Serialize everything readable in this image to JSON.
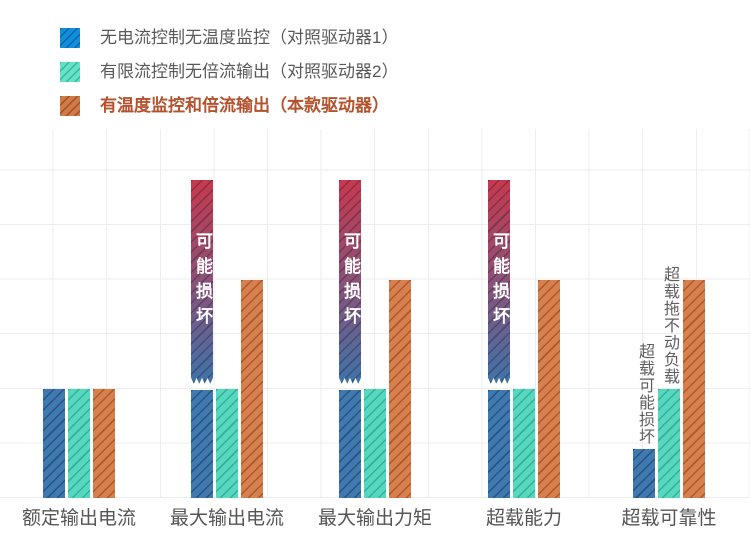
{
  "legend": {
    "items": [
      {
        "label": "无电流控制无温度监控（对照驱动器1）",
        "swatch_color": "#0f8ed9",
        "hatch_color": "rgba(10,60,140,0.55)",
        "text_color": "#595959",
        "bold": false
      },
      {
        "label": "有限流控制无倍流输出（对照驱动器2）",
        "swatch_color": "#63e2c7",
        "hatch_color": "rgba(20,120,100,0.45)",
        "text_color": "#595959",
        "bold": false
      },
      {
        "label": "有温度监控和倍流输出（本款驱动器）",
        "swatch_color": "#cf7a47",
        "hatch_color": "rgba(110,40,15,0.5)",
        "text_color": "#b4522d",
        "bold": true
      }
    ]
  },
  "chart_data": {
    "type": "bar",
    "categories": [
      "额定输出电流",
      "最大输出电流",
      "最大输出力矩",
      "超载能力",
      "超载可靠性"
    ],
    "series": [
      {
        "name": "无电流控制无温度监控（对照驱动器1）",
        "color": "#3e7aaf",
        "hatch_color": "rgba(25,40,80,0.5)",
        "values": [
          2,
          null,
          null,
          null,
          0.9
        ],
        "broken": [
          false,
          true,
          true,
          true,
          false
        ]
      },
      {
        "name": "有限流控制无倍流输出（对照驱动器2）",
        "color": "#55d8bf",
        "hatch_color": "rgba(15,110,90,0.4)",
        "values": [
          2,
          2,
          2,
          2,
          2
        ]
      },
      {
        "name": "有温度监控和倍流输出（本款驱动器）",
        "color": "#d8804d",
        "hatch_color": "rgba(110,40,15,0.45)",
        "values": [
          2,
          4,
          4,
          4,
          4
        ]
      }
    ],
    "broken_bar": {
      "label": "可能损坏",
      "visual_top_units": 5.83,
      "break_units": 2,
      "gradient": [
        "#c7394e",
        "#8a5278",
        "#3d74ab"
      ],
      "hatch_color": "rgba(40,20,40,0.35)"
    },
    "annotations": [
      {
        "category_index": 4,
        "series_index": 0,
        "text": "超载可能损坏"
      },
      {
        "category_index": 4,
        "series_index": 1,
        "text": "超载拖不动负载"
      }
    ],
    "ylim": [
      0,
      6.8
    ],
    "grid": true,
    "legend_position": "top-left"
  },
  "colors": {
    "background": "#ffffff",
    "grid": "#ededed",
    "category_label": "#555555",
    "annotation_text": "#5f5f5f",
    "broken_label_text": "#ffffff"
  }
}
